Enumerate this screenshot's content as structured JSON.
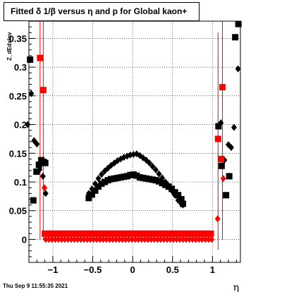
{
  "title": "Fitted δ 1/β versus η and p for Global kaon+",
  "timestamp": "Thu Sep  9 11:55:35 2021",
  "chart_data": {
    "type": "scatter",
    "title": "Fitted δ 1/β versus η and p for Global kaon+",
    "xlabel": "η",
    "ylabel": "Z_dEdxInv",
    "xlim": [
      -1.3,
      1.35
    ],
    "ylim": [
      -0.04,
      0.38
    ],
    "grid": true,
    "x_ticks": [
      {
        "v": -1,
        "label": "−1"
      },
      {
        "v": -0.5,
        "label": "−0.5"
      },
      {
        "v": 0,
        "label": "0"
      },
      {
        "v": 0.5,
        "label": "0.5"
      },
      {
        "v": 1,
        "label": "1"
      }
    ],
    "y_ticks": [
      {
        "v": 0,
        "label": "0"
      },
      {
        "v": 0.05,
        "label": "0.05"
      },
      {
        "v": 0.1,
        "label": "0.1"
      },
      {
        "v": 0.15,
        "label": "0.15"
      },
      {
        "v": 0.2,
        "label": "0.2"
      },
      {
        "v": 0.25,
        "label": "0.25"
      },
      {
        "v": 0.3,
        "label": "0.3"
      },
      {
        "v": 0.35,
        "label": "0.35"
      }
    ],
    "series": [
      {
        "marker": "square",
        "color": "#000000",
        "points": [
          [
            -1.285,
            0.313
          ],
          [
            -1.245,
            0.068
          ],
          [
            -1.205,
            0.118
          ],
          [
            -1.175,
            0.13
          ],
          [
            -1.145,
            0.138
          ],
          [
            -1.115,
            0.135
          ],
          [
            -1.095,
            0.133
          ],
          [
            -0.55,
            0.072
          ],
          [
            -0.51,
            0.078
          ],
          [
            -0.47,
            0.085
          ],
          [
            -0.43,
            0.092
          ],
          [
            -0.39,
            0.097
          ],
          [
            -0.35,
            0.1
          ],
          [
            -0.31,
            0.103
          ],
          [
            -0.27,
            0.105
          ],
          [
            -0.23,
            0.106
          ],
          [
            -0.19,
            0.107
          ],
          [
            -0.15,
            0.108
          ],
          [
            -0.11,
            0.109
          ],
          [
            -0.07,
            0.11
          ],
          [
            -0.03,
            0.112
          ],
          [
            0.01,
            0.113
          ],
          [
            0.05,
            0.111
          ],
          [
            0.09,
            0.108
          ],
          [
            0.13,
            0.107
          ],
          [
            0.17,
            0.106
          ],
          [
            0.21,
            0.105
          ],
          [
            0.25,
            0.104
          ],
          [
            0.29,
            0.103
          ],
          [
            0.33,
            0.101
          ],
          [
            0.37,
            0.098
          ],
          [
            0.41,
            0.095
          ],
          [
            0.45,
            0.092
          ],
          [
            0.49,
            0.088
          ],
          [
            0.53,
            0.082
          ],
          [
            0.57,
            0.077
          ],
          [
            0.61,
            0.07
          ],
          [
            0.63,
            0.062
          ],
          [
            1.075,
            0.197
          ],
          [
            1.115,
            0.128
          ],
          [
            1.17,
            0.077
          ],
          [
            1.21,
            0.11
          ],
          [
            1.285,
            0.352
          ],
          [
            1.325,
            0.375
          ]
        ]
      },
      {
        "marker": "diamond",
        "color": "#000000",
        "points": [
          [
            -1.315,
            0.2
          ],
          [
            -1.27,
            0.254
          ],
          [
            -1.235,
            0.172
          ],
          [
            -1.2,
            0.166
          ],
          [
            -1.165,
            0.122
          ],
          [
            -1.125,
            0.11
          ],
          [
            -1.09,
            0.08
          ],
          [
            -0.55,
            0.08
          ],
          [
            -0.51,
            0.088
          ],
          [
            -0.47,
            0.097
          ],
          [
            -0.43,
            0.106
          ],
          [
            -0.39,
            0.113
          ],
          [
            -0.35,
            0.119
          ],
          [
            -0.31,
            0.124
          ],
          [
            -0.27,
            0.129
          ],
          [
            -0.23,
            0.133
          ],
          [
            -0.19,
            0.137
          ],
          [
            -0.15,
            0.14
          ],
          [
            -0.11,
            0.143
          ],
          [
            -0.07,
            0.145
          ],
          [
            -0.03,
            0.147
          ],
          [
            0.01,
            0.148
          ],
          [
            0.05,
            0.149
          ],
          [
            0.09,
            0.146
          ],
          [
            0.13,
            0.142
          ],
          [
            0.17,
            0.138
          ],
          [
            0.21,
            0.133
          ],
          [
            0.25,
            0.127
          ],
          [
            0.29,
            0.121
          ],
          [
            0.33,
            0.114
          ],
          [
            0.37,
            0.107
          ],
          [
            0.41,
            0.1
          ],
          [
            0.45,
            0.093
          ],
          [
            0.49,
            0.085
          ],
          [
            0.53,
            0.077
          ],
          [
            0.57,
            0.068
          ],
          [
            0.61,
            0.062
          ],
          [
            0.63,
            0.06
          ],
          [
            1.105,
            0.203
          ],
          [
            1.15,
            0.138
          ],
          [
            1.2,
            0.165
          ],
          [
            1.235,
            0.16
          ],
          [
            1.27,
            0.195
          ],
          [
            1.32,
            0.297
          ]
        ]
      },
      {
        "marker": "square",
        "color": "#ff0000",
        "points": [
          [
            -1.16,
            0.316
          ],
          [
            -1.12,
            0.26
          ],
          [
            -1.1,
            0.01
          ],
          [
            -1.06,
            0.01
          ],
          [
            -1.02,
            0.01
          ],
          [
            -0.98,
            0.01
          ],
          [
            -0.94,
            0.01
          ],
          [
            -0.9,
            0.01
          ],
          [
            -0.86,
            0.01
          ],
          [
            -0.82,
            0.01
          ],
          [
            -0.78,
            0.01
          ],
          [
            -0.74,
            0.01
          ],
          [
            -0.7,
            0.01
          ],
          [
            -0.66,
            0.01
          ],
          [
            -0.62,
            0.01
          ],
          [
            -0.58,
            0.01
          ],
          [
            -0.54,
            0.01
          ],
          [
            -0.5,
            0.01
          ],
          [
            -0.46,
            0.01
          ],
          [
            -0.42,
            0.01
          ],
          [
            -0.38,
            0.01
          ],
          [
            -0.34,
            0.01
          ],
          [
            -0.3,
            0.01
          ],
          [
            -0.26,
            0.01
          ],
          [
            -0.22,
            0.01
          ],
          [
            -0.18,
            0.01
          ],
          [
            -0.14,
            0.01
          ],
          [
            -0.1,
            0.01
          ],
          [
            -0.06,
            0.01
          ],
          [
            -0.02,
            0.01
          ],
          [
            0.02,
            0.01
          ],
          [
            0.06,
            0.01
          ],
          [
            0.1,
            0.01
          ],
          [
            0.14,
            0.01
          ],
          [
            0.18,
            0.01
          ],
          [
            0.22,
            0.01
          ],
          [
            0.26,
            0.01
          ],
          [
            0.3,
            0.01
          ],
          [
            0.34,
            0.01
          ],
          [
            0.38,
            0.01
          ],
          [
            0.42,
            0.01
          ],
          [
            0.46,
            0.01
          ],
          [
            0.5,
            0.01
          ],
          [
            0.54,
            0.01
          ],
          [
            0.58,
            0.01
          ],
          [
            0.62,
            0.01
          ],
          [
            0.66,
            0.01
          ],
          [
            0.7,
            0.01
          ],
          [
            0.74,
            0.01
          ],
          [
            0.78,
            0.01
          ],
          [
            0.82,
            0.01
          ],
          [
            0.86,
            0.01
          ],
          [
            0.9,
            0.01
          ],
          [
            0.94,
            0.01
          ],
          [
            0.98,
            0.01
          ],
          [
            1.07,
            0.175
          ],
          [
            1.11,
            0.14
          ],
          [
            1.125,
            0.265
          ]
        ],
        "error_bars": [
          [
            -1.16,
            0.0,
            0.4
          ],
          [
            -1.12,
            0.0,
            0.4
          ],
          [
            1.07,
            -0.018,
            0.36
          ],
          [
            1.125,
            0.0,
            0.4
          ]
        ]
      },
      {
        "marker": "diamond",
        "color": "#ff0000",
        "points": [
          [
            -1.09,
            0.0
          ],
          [
            -1.05,
            0.0
          ],
          [
            -1.01,
            0.0
          ],
          [
            -0.97,
            0.0
          ],
          [
            -0.93,
            0.0
          ],
          [
            -0.89,
            0.0
          ],
          [
            -0.85,
            0.0
          ],
          [
            -0.81,
            0.0
          ],
          [
            -0.77,
            0.0
          ],
          [
            -0.73,
            0.0
          ],
          [
            -0.69,
            0.0
          ],
          [
            -0.65,
            0.0
          ],
          [
            -0.61,
            0.0
          ],
          [
            -0.57,
            0.0
          ],
          [
            -0.53,
            0.0
          ],
          [
            -0.49,
            0.0
          ],
          [
            -0.45,
            0.0
          ],
          [
            -0.41,
            0.0
          ],
          [
            -0.37,
            0.0
          ],
          [
            -0.33,
            0.0
          ],
          [
            -0.29,
            0.0
          ],
          [
            -0.25,
            0.0
          ],
          [
            -0.21,
            0.0
          ],
          [
            -0.17,
            0.0
          ],
          [
            -0.13,
            0.0
          ],
          [
            -0.09,
            0.0
          ],
          [
            -0.05,
            0.0
          ],
          [
            -0.01,
            0.0
          ],
          [
            0.03,
            0.0
          ],
          [
            0.07,
            0.0
          ],
          [
            0.11,
            0.0
          ],
          [
            0.15,
            0.0
          ],
          [
            0.19,
            0.0
          ],
          [
            0.23,
            0.0
          ],
          [
            0.27,
            0.0
          ],
          [
            0.31,
            0.0
          ],
          [
            0.35,
            0.0
          ],
          [
            0.39,
            0.0
          ],
          [
            0.43,
            0.0
          ],
          [
            0.47,
            0.0
          ],
          [
            0.51,
            0.0
          ],
          [
            0.55,
            0.0
          ],
          [
            0.59,
            0.0
          ],
          [
            0.63,
            0.0
          ],
          [
            0.67,
            0.0
          ],
          [
            0.71,
            0.0
          ],
          [
            0.75,
            0.0
          ],
          [
            0.79,
            0.0
          ],
          [
            0.83,
            0.0
          ],
          [
            0.87,
            0.0
          ],
          [
            0.91,
            0.0
          ],
          [
            0.95,
            0.0
          ],
          [
            0.99,
            0.0
          ],
          [
            -1.105,
            0.09
          ],
          [
            1.065,
            0.036
          ],
          [
            1.135,
            0.106
          ]
        ]
      }
    ]
  }
}
